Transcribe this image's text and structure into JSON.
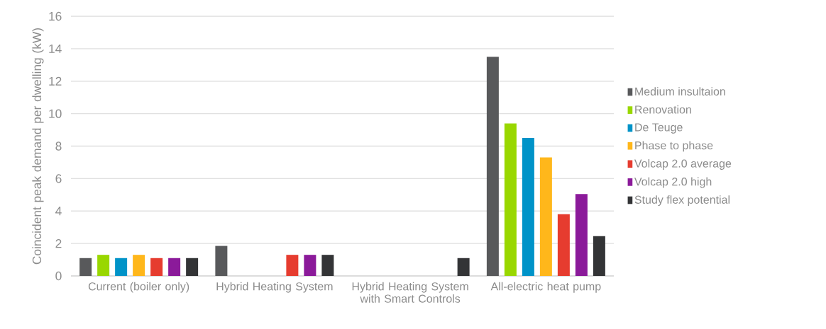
{
  "chart_data": {
    "type": "bar",
    "ylabel": "Coincident peak demand per dwelling (kW)",
    "categories": [
      "Current (boiler only)",
      "Hybrid Heating System",
      "Hybrid Heating System with Smart Controls",
      "All-electric heat pump"
    ],
    "ylim": [
      0,
      16
    ],
    "yticks": [
      0,
      2,
      4,
      6,
      8,
      10,
      12,
      14,
      16
    ],
    "grid": "y",
    "legend": "right",
    "series": [
      {
        "name": "Medium insultaion",
        "color": "#58595b",
        "values": [
          1.1,
          1.85,
          null,
          13.5
        ]
      },
      {
        "name": "Renovation",
        "color": "#99d700",
        "values": [
          1.3,
          null,
          null,
          9.4
        ]
      },
      {
        "name": "De Teuge",
        "color": "#0093c8",
        "values": [
          1.1,
          null,
          null,
          8.5
        ]
      },
      {
        "name": "Phase to phase",
        "color": "#ffb71b",
        "values": [
          1.3,
          null,
          null,
          7.3
        ]
      },
      {
        "name": "Volcap 2.0 average",
        "color": "#e63c2f",
        "values": [
          1.1,
          1.3,
          null,
          3.8
        ]
      },
      {
        "name": "Volcap 2.0 high",
        "color": "#8b1a9a",
        "values": [
          1.1,
          1.3,
          null,
          5.05
        ]
      },
      {
        "name": "Study flex potential",
        "color": "#333436",
        "values": [
          1.1,
          1.3,
          1.1,
          2.45
        ]
      }
    ]
  }
}
